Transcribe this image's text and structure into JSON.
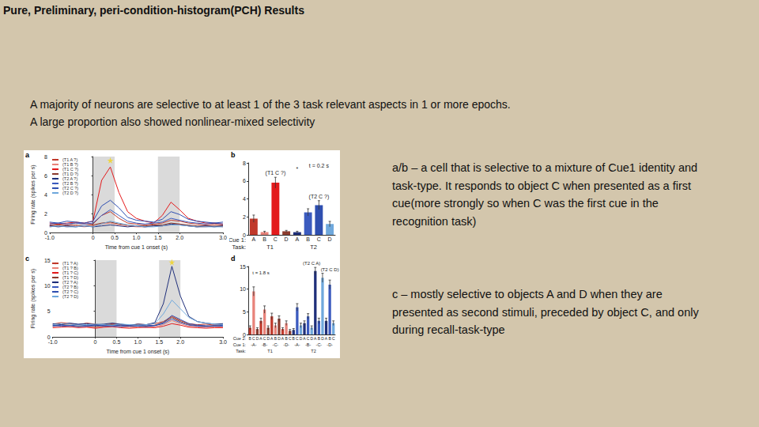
{
  "slide": {
    "title": "Pure, Preliminary, peri-condition-histogram(PCH) Results",
    "intro": [
      "A majority of neurons are selective to at least 1 of the 3 task relevant aspects in 1 or more epochs.",
      "A large proportion also showed nonlinear-mixed selectivity"
    ],
    "notes": [
      {
        "lines": [
          "a/b – a cell that is selective to a mixture of Cue1 identity and",
          "task-type. It responds to object C when presented as a first",
          "cue(more strongly so when C was the first cue in the",
          "recognition task)"
        ]
      },
      {
        "lines": [
          "c – mostly selective to objects A and D when they are",
          "presented as second stimuli, preceded by object C, and only",
          "during recall-task-type"
        ]
      }
    ]
  },
  "chart_data": [
    {
      "type": "line",
      "panel": "a",
      "xlabel": "Time from cue 1 onset (s)",
      "ylabel": "Firing rate (spikes per s)",
      "x": [
        -1,
        -0.8,
        -0.6,
        -0.4,
        -0.2,
        0,
        0.2,
        0.4,
        0.6,
        0.8,
        1,
        1.2,
        1.4,
        1.6,
        1.8,
        2,
        2.2,
        2.4,
        2.6,
        2.8,
        3
      ],
      "xlim": [
        -1,
        3
      ],
      "xticks": [
        {
          "value": -1,
          "label": "-1.0"
        },
        0,
        0.5,
        {
          "value": 1,
          "label": "1.0"
        },
        1.5,
        {
          "value": 2,
          "label": "2.0"
        },
        {
          "value": 3,
          "label": "3.0"
        }
      ],
      "ylim": [
        0,
        8
      ],
      "yticks": [
        0,
        2,
        4,
        6,
        8
      ],
      "grid": false,
      "legend": "top-left",
      "shaded": [
        [
          0,
          0.5
        ],
        [
          1.5,
          2
        ]
      ],
      "stars": [
        {
          "x": 0.4,
          "y": 7.6
        }
      ],
      "series": [
        {
          "name": "(T1 A ?)",
          "color": "#c0392b",
          "values": [
            0.8,
            0.9,
            0.8,
            1,
            0.9,
            0.9,
            1.8,
            2.2,
            1.5,
            1,
            0.9,
            0.8,
            0.9,
            1,
            1.3,
            1.2,
            1,
            0.9,
            0.8,
            0.9,
            0.8
          ]
        },
        {
          "name": "(T1 B ?)",
          "color": "#e8837a",
          "values": [
            0.6,
            0.7,
            0.6,
            0.7,
            0.6,
            0.7,
            0.9,
            1,
            0.8,
            0.7,
            0.6,
            0.6,
            0.7,
            0.7,
            0.8,
            0.9,
            0.7,
            0.6,
            0.6,
            0.7,
            0.6
          ]
        },
        {
          "name": "(T1 C ?)",
          "color": "#e31a1c",
          "values": [
            1,
            0.9,
            1,
            1.1,
            1,
            1.2,
            5.5,
            6.9,
            4.2,
            2.2,
            1.5,
            1.2,
            1,
            1.8,
            3.2,
            2.4,
            1.5,
            1.2,
            1,
            1,
            0.9
          ]
        },
        {
          "name": "(T1 D ?)",
          "color": "#8c3b2e",
          "values": [
            0.7,
            0.8,
            0.7,
            0.8,
            0.7,
            0.8,
            1,
            1.1,
            0.9,
            0.8,
            0.7,
            0.7,
            0.8,
            0.8,
            1,
            0.9,
            0.8,
            0.7,
            0.7,
            0.7,
            0.7
          ]
        },
        {
          "name": "(T2 A ?)",
          "color": "#1f2f7a",
          "values": [
            0.7,
            0.6,
            0.7,
            0.6,
            0.7,
            0.6,
            0.7,
            0.8,
            0.7,
            0.6,
            0.7,
            0.6,
            0.7,
            0.7,
            0.9,
            0.8,
            0.7,
            0.6,
            0.7,
            0.6,
            0.7
          ]
        },
        {
          "name": "(T2 B ?)",
          "color": "#3b5bbf",
          "values": [
            0.9,
            1,
            0.9,
            1,
            0.9,
            1,
            1.8,
            2.4,
            1.8,
            1.2,
            1,
            0.9,
            1,
            1.1,
            1.5,
            1.3,
            1.1,
            1,
            0.9,
            1,
            0.9
          ]
        },
        {
          "name": "(T2 C ?)",
          "color": "#2f4fb0",
          "values": [
            1.1,
            1,
            1.2,
            1.1,
            1,
            1.2,
            2.8,
            3.4,
            2.6,
            1.6,
            1.3,
            1.2,
            1.1,
            1.4,
            2.2,
            1.9,
            1.4,
            1.2,
            1.1,
            1,
            1.1
          ]
        },
        {
          "name": "(T2 D ?)",
          "color": "#6fa8dc",
          "values": [
            0.6,
            0.7,
            0.6,
            0.6,
            0.7,
            0.6,
            0.9,
            1.2,
            1,
            0.8,
            0.7,
            0.6,
            0.6,
            0.7,
            0.8,
            0.8,
            0.7,
            0.6,
            0.6,
            0.6,
            0.6
          ]
        }
      ]
    },
    {
      "type": "bar",
      "panel": "b",
      "x_rows": [
        {
          "label": "Cue 1:",
          "categories": [
            "A",
            "B",
            "C",
            "D",
            "A",
            "B",
            "C",
            "D"
          ]
        },
        {
          "label": "Task:",
          "categories": [
            "T1",
            "T2"
          ]
        }
      ],
      "values": [
        1.8,
        0.3,
        5.8,
        0.4,
        0.3,
        2.5,
        3.3,
        1.2
      ],
      "errors": [
        0.4,
        0.1,
        0.6,
        0.1,
        0.1,
        0.4,
        0.5,
        0.3
      ],
      "colors": [
        "#c0392b",
        "#e8837a",
        "#e31a1c",
        "#8c3b2e",
        "#1f2f7a",
        "#3b5bbf",
        "#2f4fb0",
        "#6fa8dc"
      ],
      "ylim": [
        0,
        8
      ],
      "yticks": [
        0,
        2,
        4,
        6,
        8
      ],
      "grid": false,
      "annotations": [
        {
          "text": "(T1 C ?)",
          "x": 2,
          "y": 6.6
        },
        {
          "text": "(T2 C ?)",
          "x": 6,
          "y": 4
        },
        {
          "text": "*",
          "x": 4,
          "y": 7
        },
        {
          "text": "t = 0.2 s",
          "x": 6,
          "y": 7.4
        }
      ]
    },
    {
      "type": "line",
      "panel": "c",
      "xlabel": "Time from cue 1 onset (s)",
      "ylabel": "Firing rate (spikes per s)",
      "x": [
        -1,
        -0.8,
        -0.6,
        -0.4,
        -0.2,
        0,
        0.2,
        0.4,
        0.6,
        0.8,
        1,
        1.2,
        1.4,
        1.6,
        1.8,
        2,
        2.2,
        2.4,
        2.6,
        2.8,
        3
      ],
      "xlim": [
        -1,
        3
      ],
      "xticks": [
        {
          "value": -1,
          "label": "-1.0"
        },
        0,
        0.5,
        {
          "value": 1,
          "label": "1.0"
        },
        1.5,
        {
          "value": 2,
          "label": "2.0"
        },
        {
          "value": 3,
          "label": "3.0"
        }
      ],
      "ylim": [
        0,
        15
      ],
      "yticks": [
        0,
        5,
        10,
        15
      ],
      "grid": false,
      "legend": "top-left",
      "shaded": [
        [
          0,
          0.5
        ],
        [
          1.5,
          2
        ]
      ],
      "stars": [
        {
          "x": 1.8,
          "y": 14.6
        }
      ],
      "series": [
        {
          "name": "(T1 ? A)",
          "color": "#c0392b",
          "values": [
            2.5,
            2.8,
            2.6,
            2.4,
            2.7,
            2.5,
            2.3,
            2.6,
            2.4,
            2.2,
            2.5,
            2.4,
            2.6,
            3,
            4,
            3.2,
            2.6,
            2.4,
            2.5,
            2.3,
            2.4
          ]
        },
        {
          "name": "(T1 ? B)",
          "color": "#e8837a",
          "values": [
            2,
            2.2,
            1.9,
            2.1,
            2,
            1.8,
            2,
            2.2,
            2,
            1.9,
            2,
            1.8,
            2,
            2.4,
            3.2,
            2.6,
            2.1,
            2,
            1.9,
            2,
            1.9
          ]
        },
        {
          "name": "(T1 ? C)",
          "color": "#e31a1c",
          "values": [
            1.8,
            1.9,
            2,
            1.8,
            1.9,
            1.7,
            1.9,
            2,
            1.8,
            1.7,
            1.8,
            1.9,
            1.8,
            2.1,
            2.6,
            2.3,
            1.9,
            1.8,
            1.7,
            1.8,
            1.8
          ]
        },
        {
          "name": "(T1 ? D)",
          "color": "#8c3b2e",
          "values": [
            2.2,
            2.4,
            2.3,
            2.1,
            2.2,
            2,
            2.3,
            2.4,
            2.2,
            2.1,
            2.2,
            2.1,
            2.3,
            2.8,
            3.8,
            3,
            2.4,
            2.2,
            2.1,
            2.2,
            2.1
          ]
        },
        {
          "name": "(T2 ? A)",
          "color": "#1f2f7a",
          "values": [
            2.6,
            2.4,
            2.7,
            2.5,
            2.6,
            2.4,
            2.5,
            2.7,
            2.5,
            2.3,
            2.5,
            2.4,
            2.8,
            6.5,
            13.8,
            8,
            4,
            3,
            2.7,
            2.5,
            2.6
          ]
        },
        {
          "name": "(T2 ? B)",
          "color": "#3b5bbf",
          "values": [
            2.1,
            2.3,
            2.2,
            2,
            2.1,
            2.2,
            2.3,
            2.1,
            2,
            2.2,
            2.1,
            2,
            2.2,
            2.6,
            3.5,
            2.8,
            2.3,
            2.1,
            2,
            2.2,
            2.1
          ]
        },
        {
          "name": "(T2 ? C)",
          "color": "#2f4fb0",
          "values": [
            2.3,
            2.1,
            2.2,
            2.4,
            2.2,
            2.3,
            2.1,
            2.2,
            2.3,
            2.1,
            2.2,
            2.3,
            2.2,
            2.8,
            4.2,
            3.4,
            2.6,
            2.3,
            2.2,
            2.1,
            2.3
          ]
        },
        {
          "name": "(T2 ? D)",
          "color": "#6fa8dc",
          "values": [
            2.4,
            2.6,
            2.5,
            2.3,
            2.4,
            2.5,
            2.4,
            2.3,
            2.5,
            2.4,
            2.3,
            2.4,
            2.6,
            4.5,
            7.2,
            5.5,
            3.8,
            3,
            2.7,
            2.5,
            2.4
          ]
        }
      ]
    },
    {
      "type": "bar",
      "panel": "d",
      "x_rows": [
        {
          "label": "Cue 2:",
          "categories": [
            "B",
            "C",
            "D",
            "A",
            "C",
            "D",
            "A",
            "B",
            "D",
            "A",
            "B",
            "C",
            "B",
            "C",
            "D",
            "A",
            "C",
            "D",
            "A",
            "B",
            "D",
            "A",
            "B",
            "C"
          ]
        },
        {
          "label": "Cue 1:",
          "categories": [
            "-A-",
            "-B-",
            "-C-",
            "-D-",
            "-A-",
            "-B-",
            "-C-",
            "-D-"
          ]
        },
        {
          "label": "Task:",
          "categories": [
            "T1",
            "T2"
          ]
        }
      ],
      "values": [
        1.5,
        9.5,
        1.2,
        3,
        5.5,
        1.5,
        4,
        2,
        3.5,
        1.2,
        2.5,
        0.8,
        1,
        6,
        2,
        2.5,
        4,
        1.5,
        14,
        3,
        12.5,
        3,
        11,
        2.5
      ],
      "errors": [
        0.4,
        1,
        0.3,
        0.6,
        0.8,
        0.4,
        0.7,
        0.5,
        0.6,
        0.3,
        0.5,
        0.3,
        0.3,
        0.8,
        0.5,
        0.5,
        0.6,
        0.4,
        0.8,
        0.6,
        1,
        0.6,
        1,
        0.5
      ],
      "colors": [
        "#c0392b",
        "#e8837a",
        "#8c3b2e",
        "#c0392b",
        "#e8837a",
        "#8c3b2e",
        "#c0392b",
        "#e8837a",
        "#8c3b2e",
        "#c0392b",
        "#e8837a",
        "#8c3b2e",
        "#1f2f7a",
        "#3b5bbf",
        "#6fa8dc",
        "#1f2f7a",
        "#3b5bbf",
        "#6fa8dc",
        "#1f2f7a",
        "#3b5bbf",
        "#6fa8dc",
        "#1f2f7a",
        "#3b5bbf",
        "#6fa8dc"
      ],
      "ylim": [
        0,
        15
      ],
      "yticks": [
        0,
        5,
        10,
        15
      ],
      "grid": false,
      "annotations": [
        {
          "text": "t = 1.8 s",
          "x": 3,
          "y": 13
        },
        {
          "text": "(T2 C A)",
          "x": 17,
          "y": 15.2
        },
        {
          "text": "(T2 C D)",
          "x": 21.5,
          "y": 13.8
        }
      ]
    }
  ]
}
